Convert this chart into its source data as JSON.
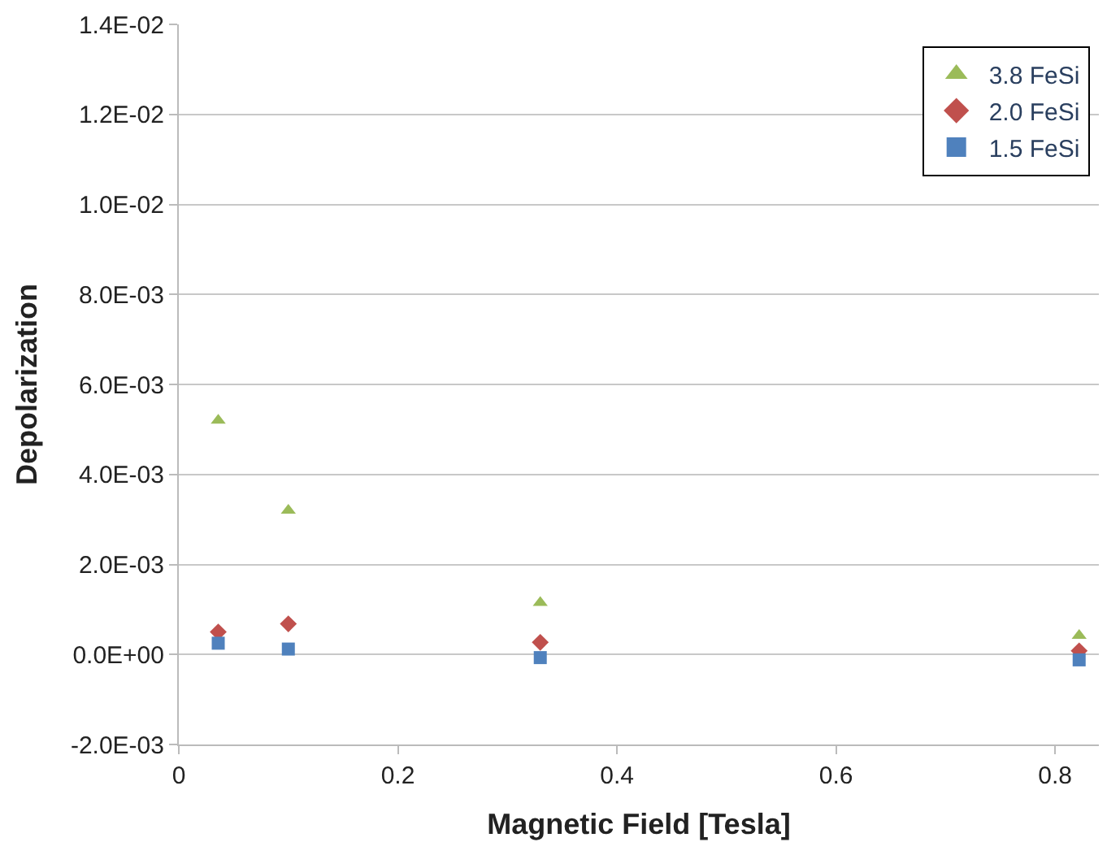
{
  "chart_data": {
    "type": "scatter",
    "xlabel": "Magnetic Field [Tesla]",
    "ylabel": "Depolarization",
    "x": [
      0.036,
      0.1,
      0.33,
      0.822
    ],
    "series": [
      {
        "name": "3.8 FeSi",
        "color": "#9bbb59",
        "marker": "triangle",
        "values": [
          0.0052,
          0.0032,
          0.00115,
          0.00042
        ]
      },
      {
        "name": "2.0 FeSi",
        "color": "#c0504d",
        "marker": "diamond",
        "values": [
          0.0005,
          0.00068,
          0.00027,
          8e-05
        ]
      },
      {
        "name": "1.5 FeSi",
        "color": "#4f81bd",
        "marker": "square",
        "values": [
          0.00025,
          0.00012,
          -7e-05,
          -0.00012
        ]
      }
    ],
    "xlim": [
      0,
      0.84
    ],
    "xticks": [
      0,
      0.2,
      0.4,
      0.6,
      0.8
    ],
    "ylim": [
      -0.002,
      0.014
    ],
    "yticks": [
      {
        "value": -0.002,
        "label": "-2.0E-03"
      },
      {
        "value": 0,
        "label": "0.0E+00"
      },
      {
        "value": 0.002,
        "label": "2.0E-03"
      },
      {
        "value": 0.004,
        "label": "4.0E-03"
      },
      {
        "value": 0.006,
        "label": "6.0E-03"
      },
      {
        "value": 0.008,
        "label": "8.0E-03"
      },
      {
        "value": 0.01,
        "label": "1.0E-02"
      },
      {
        "value": 0.012,
        "label": "1.2E-02"
      },
      {
        "value": 0.014,
        "label": "1.4E-02"
      }
    ],
    "grid": "y",
    "legend": "top right"
  }
}
